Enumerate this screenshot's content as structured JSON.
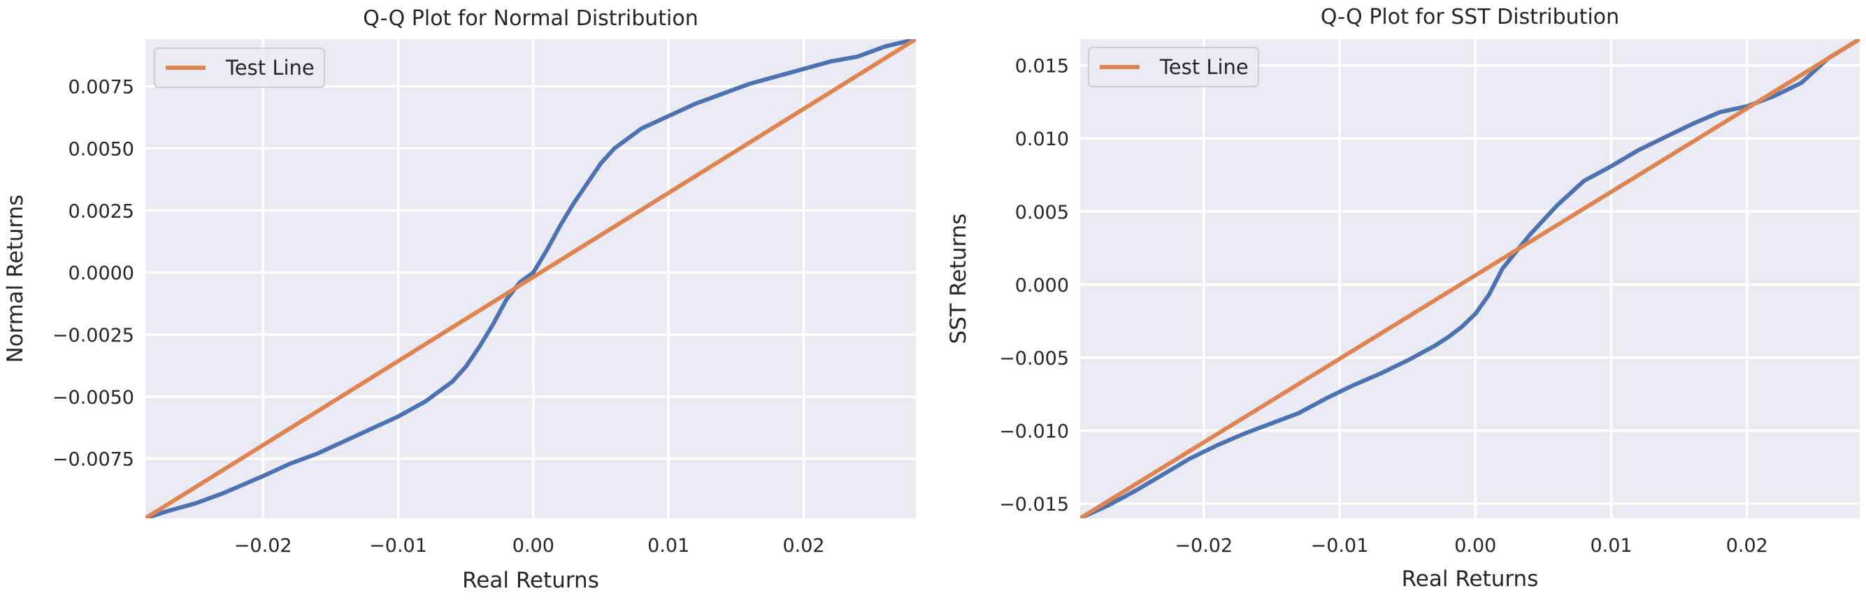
{
  "colors": {
    "background": "#ffffff",
    "plot_bg": "#eaeaf2",
    "grid": "#ffffff",
    "blue_series": "#4c72b0",
    "orange_series": "#dd8452",
    "text": "#262626"
  },
  "chart_data": [
    {
      "type": "line",
      "title": "Q-Q Plot for Normal Distribution",
      "xlabel": "Real Returns",
      "ylabel": "Normal Returns",
      "xlim": [
        -0.0287,
        0.0283
      ],
      "ylim": [
        -0.0099,
        0.0094
      ],
      "grid": true,
      "legend": {
        "placement": "top-left",
        "entries": [
          "Test Line"
        ]
      },
      "xticks": [
        {
          "value": -0.02,
          "label": "−0.02"
        },
        {
          "value": -0.01,
          "label": "−0.01"
        },
        {
          "value": 0.0,
          "label": "0.00"
        },
        {
          "value": 0.01,
          "label": "0.01"
        },
        {
          "value": 0.02,
          "label": "0.02"
        }
      ],
      "yticks": [
        {
          "value": -0.0075,
          "label": "−0.0075"
        },
        {
          "value": -0.005,
          "label": "−0.0050"
        },
        {
          "value": -0.0025,
          "label": "−0.0025"
        },
        {
          "value": 0.0,
          "label": "0.0000"
        },
        {
          "value": 0.0025,
          "label": "0.0025"
        },
        {
          "value": 0.005,
          "label": "0.0050"
        },
        {
          "value": 0.0075,
          "label": "0.0075"
        }
      ],
      "series": [
        {
          "color": "#4c72b0",
          "x": [
            -0.0287,
            -0.027,
            -0.025,
            -0.023,
            -0.02,
            -0.018,
            -0.016,
            -0.014,
            -0.012,
            -0.01,
            -0.008,
            -0.006,
            -0.005,
            -0.004,
            -0.003,
            -0.002,
            -0.001,
            0.0,
            0.001,
            0.002,
            0.003,
            0.004,
            0.005,
            0.006,
            0.008,
            0.01,
            0.012,
            0.014,
            0.016,
            0.018,
            0.02,
            0.022,
            0.024,
            0.026,
            0.0283
          ],
          "y": [
            -0.0099,
            -0.0096,
            -0.0093,
            -0.0089,
            -0.0082,
            -0.0077,
            -0.0073,
            -0.0068,
            -0.0063,
            -0.0058,
            -0.0052,
            -0.0044,
            -0.0038,
            -0.003,
            -0.0021,
            -0.0011,
            -0.0004,
            0.0,
            0.0009,
            0.0019,
            0.0028,
            0.0036,
            0.0044,
            0.005,
            0.0058,
            0.0063,
            0.0068,
            0.0072,
            0.0076,
            0.0079,
            0.0082,
            0.0085,
            0.0087,
            0.0091,
            0.0094
          ]
        },
        {
          "name": "Test Line",
          "color": "#dd8452",
          "x": [
            -0.0287,
            0.0283
          ],
          "y": [
            -0.0099,
            0.0094
          ]
        }
      ]
    },
    {
      "type": "line",
      "title": "Q-Q Plot for SST Distribution",
      "xlabel": "Real Returns",
      "ylabel": "SST Returns",
      "xlim": [
        -0.0291,
        0.0283
      ],
      "ylim": [
        -0.016,
        0.0168
      ],
      "grid": true,
      "legend": {
        "placement": "top-left",
        "entries": [
          "Test Line"
        ]
      },
      "xticks": [
        {
          "value": -0.02,
          "label": "−0.02"
        },
        {
          "value": -0.01,
          "label": "−0.01"
        },
        {
          "value": 0.0,
          "label": "0.00"
        },
        {
          "value": 0.01,
          "label": "0.01"
        },
        {
          "value": 0.02,
          "label": "0.02"
        }
      ],
      "yticks": [
        {
          "value": -0.015,
          "label": "−0.015"
        },
        {
          "value": -0.01,
          "label": "−0.010"
        },
        {
          "value": -0.005,
          "label": "−0.005"
        },
        {
          "value": 0.0,
          "label": "0.000"
        },
        {
          "value": 0.005,
          "label": "0.005"
        },
        {
          "value": 0.01,
          "label": "0.010"
        },
        {
          "value": 0.015,
          "label": "0.015"
        }
      ],
      "series": [
        {
          "color": "#4c72b0",
          "x": [
            -0.0291,
            -0.027,
            -0.025,
            -0.023,
            -0.021,
            -0.019,
            -0.017,
            -0.015,
            -0.013,
            -0.011,
            -0.009,
            -0.007,
            -0.005,
            -0.003,
            -0.002,
            -0.001,
            0.0,
            0.001,
            0.002,
            0.004,
            0.006,
            0.008,
            0.01,
            0.012,
            0.014,
            0.016,
            0.018,
            0.02,
            0.022,
            0.024,
            0.026,
            0.0283
          ],
          "y": [
            -0.016,
            -0.0151,
            -0.0141,
            -0.013,
            -0.0119,
            -0.011,
            -0.0102,
            -0.0095,
            -0.0088,
            -0.0078,
            -0.0069,
            -0.0061,
            -0.0052,
            -0.0042,
            -0.0036,
            -0.0029,
            -0.002,
            -0.0007,
            0.0011,
            0.0034,
            0.0054,
            0.0071,
            0.0081,
            0.0092,
            0.0101,
            0.011,
            0.0118,
            0.0122,
            0.0129,
            0.0138,
            0.0155,
            0.0168
          ]
        },
        {
          "name": "Test Line",
          "color": "#dd8452",
          "x": [
            -0.0291,
            0.0283
          ],
          "y": [
            -0.016,
            0.0168
          ]
        }
      ]
    }
  ]
}
